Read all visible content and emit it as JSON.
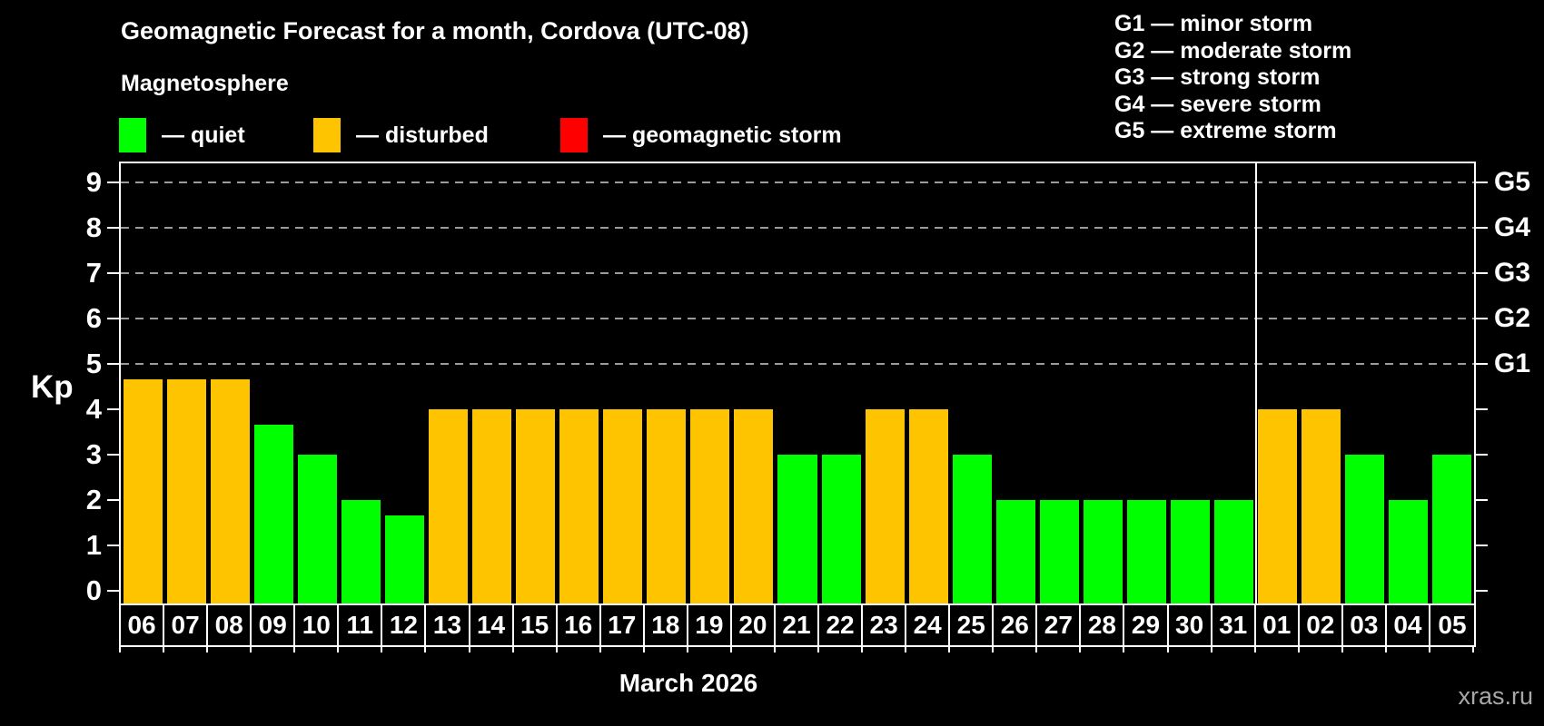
{
  "header": {
    "title": "Geomagnetic Forecast for a month, Cordova (UTC-08)",
    "subtitle": "Magnetosphere"
  },
  "legend": {
    "items": [
      {
        "label": "— quiet",
        "status": "quiet",
        "color": "#00ff00"
      },
      {
        "label": "— disturbed",
        "status": "disturbed",
        "color": "#ffc400"
      },
      {
        "label": "— geomagnetic storm",
        "status": "storm",
        "color": "#ff0000"
      }
    ]
  },
  "g_legend": {
    "items": [
      "G1 — minor storm",
      "G2 — moderate storm",
      "G3 — strong storm",
      "G4 — severe storm",
      "G5 — extreme storm"
    ]
  },
  "chart_data": {
    "type": "bar",
    "title": "Geomagnetic Forecast for a month, Cordova (UTC-08)",
    "ylabel": "Kp",
    "month_label": "March 2026",
    "ylim": [
      0,
      9.4
    ],
    "yticks": [
      0,
      1,
      2,
      3,
      4,
      5,
      6,
      7,
      8,
      9
    ],
    "gridlines_at_kp": [
      5,
      6,
      7,
      8,
      9
    ],
    "grid": "dashed horizontal lines at Kp 5-9 only",
    "legend_position": "top-left",
    "right_axis": [
      {
        "kp": 5,
        "label": "G1"
      },
      {
        "kp": 6,
        "label": "G2"
      },
      {
        "kp": 7,
        "label": "G3"
      },
      {
        "kp": 8,
        "label": "G4"
      },
      {
        "kp": 9,
        "label": "G5"
      }
    ],
    "categories": [
      "06",
      "07",
      "08",
      "09",
      "10",
      "11",
      "12",
      "13",
      "14",
      "15",
      "16",
      "17",
      "18",
      "19",
      "20",
      "21",
      "22",
      "23",
      "24",
      "25",
      "26",
      "27",
      "28",
      "29",
      "30",
      "31",
      "01",
      "02",
      "03",
      "04",
      "05"
    ],
    "values": [
      4.67,
      4.67,
      4.67,
      3.67,
      3,
      2,
      1.67,
      4,
      4,
      4,
      4,
      4,
      4,
      4,
      4,
      3,
      3,
      4,
      4,
      3,
      2,
      2,
      2,
      2,
      2,
      2,
      4,
      4,
      3,
      2,
      3
    ],
    "statuses": [
      "disturbed",
      "disturbed",
      "disturbed",
      "quiet",
      "quiet",
      "quiet",
      "quiet",
      "disturbed",
      "disturbed",
      "disturbed",
      "disturbed",
      "disturbed",
      "disturbed",
      "disturbed",
      "disturbed",
      "quiet",
      "quiet",
      "disturbed",
      "disturbed",
      "quiet",
      "quiet",
      "quiet",
      "quiet",
      "quiet",
      "quiet",
      "quiet",
      "disturbed",
      "disturbed",
      "quiet",
      "quiet",
      "quiet"
    ],
    "month_separator_after_category": "31",
    "status_colors": {
      "quiet": "#00ff00",
      "disturbed": "#ffc400",
      "storm": "#ff0000"
    }
  },
  "footer": {
    "watermark": "xras.ru"
  }
}
